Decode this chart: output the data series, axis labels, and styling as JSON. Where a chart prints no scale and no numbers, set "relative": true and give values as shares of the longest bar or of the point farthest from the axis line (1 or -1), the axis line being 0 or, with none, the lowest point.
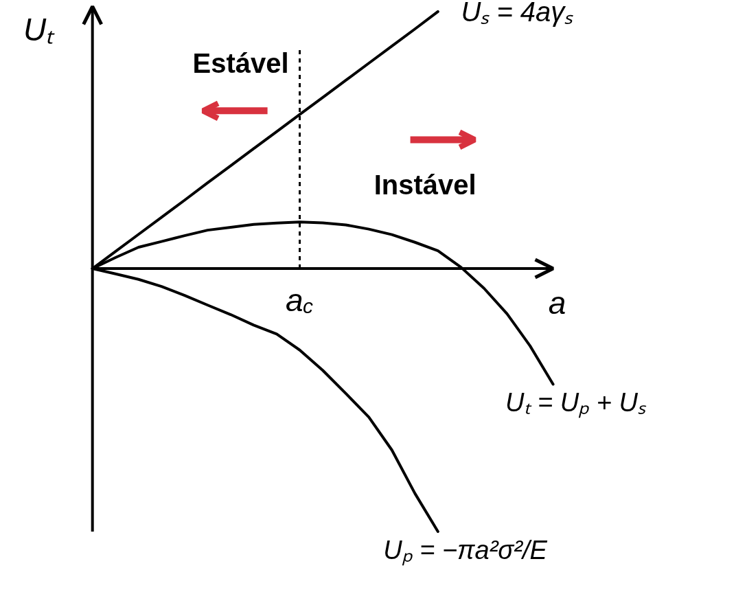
{
  "chart_data": {
    "type": "line",
    "relative": true,
    "xlabel": "a",
    "ylabel": "Uₜ",
    "categories": [
      null,
      null,
      null,
      null,
      null,
      null,
      null,
      null,
      null,
      null,
      null,
      null,
      null,
      null,
      null,
      null,
      null,
      null,
      null,
      null,
      null
    ],
    "series": [
      {
        "name": "Uₛ = 4aγₛ",
        "color": "#000000",
        "values": [
          0,
          0.065,
          0.13,
          0.195,
          0.26,
          0.326,
          0.391,
          0.456,
          0.521,
          0.586,
          0.651,
          0.716,
          0.781,
          0.846,
          0.911,
          0.977,
          null,
          null,
          null,
          null,
          null
        ]
      },
      {
        "name": "Uₜ = Uₚ + Uₛ",
        "color": "#000000",
        "values": [
          0,
          0.042,
          0.081,
          0.103,
          0.125,
          0.146,
          0.157,
          0.168,
          0.173,
          0.177,
          0.174,
          0.166,
          0.15,
          0.129,
          0.1,
          0.068,
          0.005,
          -0.075,
          -0.172,
          -0.294,
          -0.44
        ]
      },
      {
        "name": "Uₚ = −πa²σ²/E",
        "color": "#000000",
        "values": [
          0,
          -0.02,
          -0.041,
          -0.068,
          -0.102,
          -0.139,
          -0.175,
          -0.215,
          -0.249,
          -0.31,
          -0.387,
          -0.475,
          -0.565,
          -0.69,
          -0.855,
          -1.0,
          null,
          null,
          null,
          null,
          null
        ]
      }
    ],
    "annotations": [
      "Estável",
      "Instável",
      "a$_{c}$"
    ]
  }
}
